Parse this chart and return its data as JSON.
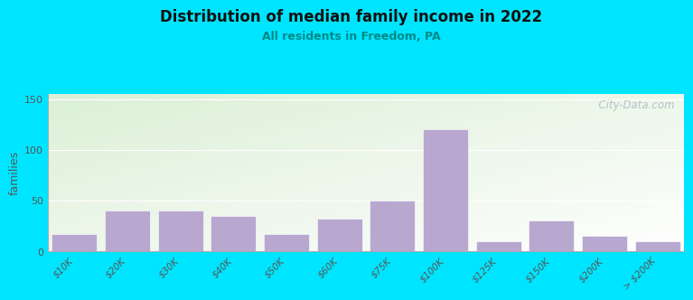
{
  "title": "Distribution of median family income in 2022",
  "subtitle": "All residents in Freedom, PA",
  "ylabel": "families",
  "categories": [
    "$10K",
    "$20K",
    "$30K",
    "$40K",
    "$50K",
    "$60K",
    "$75K",
    "$100K",
    "$125K",
    "$150K",
    "$200K",
    "> $200K"
  ],
  "values": [
    17,
    40,
    40,
    35,
    17,
    32,
    50,
    120,
    10,
    30,
    15,
    10
  ],
  "bar_color": "#b8a8d0",
  "bg_outer": "#00e5ff",
  "title_color": "#111111",
  "subtitle_color": "#008888",
  "yticks": [
    0,
    50,
    100,
    150
  ],
  "ylim": [
    0,
    155
  ],
  "watermark": "  City-Data.com",
  "watermark_color": "#aab8c2"
}
